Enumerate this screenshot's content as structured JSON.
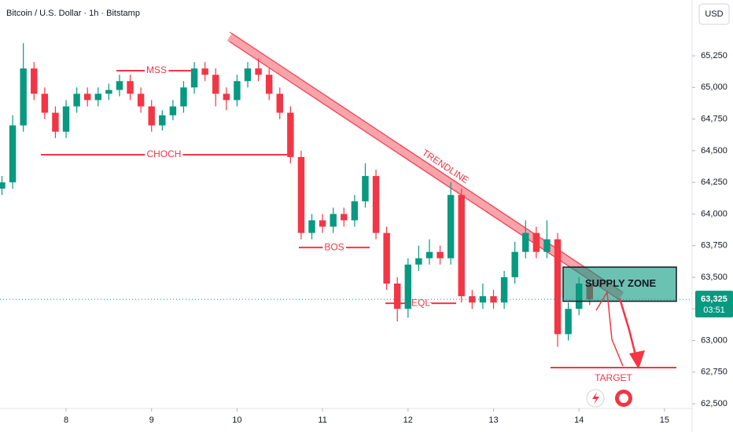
{
  "chart_data": {
    "type": "candlestick",
    "title": "Bitcoin / U.S. Dollar · 1h · Bitstamp",
    "currency": "USD",
    "up_color": "#089981",
    "down_color": "#f23645",
    "x": [
      7.25,
      7.375,
      7.5,
      7.625,
      7.75,
      7.875,
      8.0,
      8.125,
      8.25,
      8.375,
      8.5,
      8.625,
      8.75,
      8.875,
      9.0,
      9.125,
      9.25,
      9.375,
      9.5,
      9.625,
      9.75,
      9.875,
      10.0,
      10.125,
      10.25,
      10.375,
      10.5,
      10.625,
      10.75,
      10.875,
      11.0,
      11.125,
      11.25,
      11.375,
      11.5,
      11.625,
      11.75,
      11.875,
      12.0,
      12.125,
      12.25,
      12.375,
      12.5,
      12.625,
      12.75,
      12.875,
      13.0,
      13.125,
      13.25,
      13.375,
      13.5,
      13.625,
      13.75,
      13.875,
      14.0,
      14.125
    ],
    "open": [
      64200,
      64250,
      64700,
      65150,
      64950,
      64800,
      64650,
      64850,
      64950,
      64900,
      64950,
      64980,
      65050,
      64950,
      64850,
      64700,
      64780,
      64850,
      65000,
      65150,
      65100,
      64950,
      64900,
      65050,
      65150,
      65100,
      64950,
      64800,
      64450,
      63850,
      63950,
      63900,
      64000,
      63950,
      64100,
      64300,
      63850,
      63450,
      63250,
      63600,
      63650,
      63700,
      63650,
      64150,
      63350,
      63300,
      63350,
      63300,
      63500,
      63700,
      63850,
      63700,
      63800,
      63050,
      63250,
      63450
    ],
    "high": [
      64300,
      64780,
      65350,
      65200,
      65000,
      64850,
      64900,
      65000,
      65000,
      65000,
      65030,
      65100,
      65100,
      65000,
      64900,
      64820,
      64900,
      65050,
      65200,
      65200,
      65150,
      65000,
      65100,
      65200,
      65230,
      65150,
      65000,
      64850,
      64500,
      64000,
      64000,
      64050,
      64050,
      64150,
      64400,
      64350,
      63900,
      63500,
      63650,
      63750,
      63800,
      63750,
      64250,
      64200,
      63400,
      63450,
      63400,
      63550,
      63780,
      63950,
      63900,
      63950,
      63850,
      63300,
      63500,
      63480
    ],
    "low": [
      64150,
      64200,
      64650,
      64900,
      64750,
      64600,
      64600,
      64800,
      64850,
      64850,
      64900,
      64930,
      64900,
      64800,
      64650,
      64660,
      64740,
      64800,
      64950,
      65050,
      64850,
      64820,
      64850,
      65000,
      65050,
      64900,
      64750,
      64400,
      63800,
      63800,
      63850,
      63850,
      63900,
      63900,
      64050,
      63800,
      63400,
      63150,
      63180,
      63550,
      63600,
      63600,
      63600,
      63300,
      63250,
      63250,
      63250,
      63250,
      63450,
      63650,
      63650,
      63650,
      62950,
      63000,
      63200,
      63280
    ],
    "close": [
      64250,
      64700,
      65150,
      64950,
      64800,
      64650,
      64850,
      64950,
      64900,
      64950,
      64980,
      65050,
      64950,
      64850,
      64700,
      64780,
      64850,
      65000,
      65150,
      65100,
      64950,
      64900,
      65050,
      65150,
      65100,
      64950,
      64800,
      64450,
      63850,
      63950,
      63900,
      64000,
      63950,
      64100,
      64300,
      63850,
      63450,
      63250,
      63600,
      63650,
      63700,
      63650,
      64150,
      63350,
      63300,
      63350,
      63300,
      63500,
      63700,
      63850,
      63700,
      63800,
      63050,
      63250,
      63450,
      63325
    ],
    "xlim": [
      7.227,
      15.323
    ],
    "ylim": [
      62463,
      65691
    ],
    "xticks": [
      8,
      9,
      10,
      11,
      12,
      13,
      14,
      15
    ],
    "yticks": [
      {
        "value": 62500,
        "label": "62,500"
      },
      {
        "value": 62750,
        "label": "62,750"
      },
      {
        "value": 63000,
        "label": "63,000"
      },
      {
        "value": 63250,
        "label": "63,250"
      },
      {
        "value": 63500,
        "label": "63,500"
      },
      {
        "value": 63750,
        "label": "63,750"
      },
      {
        "value": 64000,
        "label": "64,000"
      },
      {
        "value": 64250,
        "label": "64,250"
      },
      {
        "value": 64500,
        "label": "64,500"
      },
      {
        "value": 64750,
        "label": "64,750"
      },
      {
        "value": 65000,
        "label": "65,000"
      },
      {
        "value": 65250,
        "label": "65,250"
      }
    ],
    "last": {
      "value": 63325,
      "label": "63,325",
      "countdown": "03:51"
    },
    "levels": [
      {
        "label": "MSS",
        "x": [
          8.589,
          9.527
        ],
        "y": 65132
      },
      {
        "label": "CHOCH",
        "x": [
          7.705,
          10.585
        ],
        "y": 64468
      },
      {
        "label": "BOS",
        "x": [
          10.723,
          11.551
        ],
        "y": 63735
      },
      {
        "label": "EQL",
        "x": [
          11.735,
          12.563
        ],
        "y": 63294
      }
    ],
    "target": {
      "label": "TARGET",
      "x": [
        13.667,
        15.139
      ],
      "y": 62786
    },
    "trendline": {
      "label": "TRENDLINE",
      "x": [
        9.913,
        14.495
      ],
      "y": [
        65400,
        63350
      ]
    },
    "zone": {
      "label": "SUPPLY ZONE",
      "x": [
        13.814,
        15.139
      ],
      "y": [
        63580,
        63310
      ]
    }
  }
}
